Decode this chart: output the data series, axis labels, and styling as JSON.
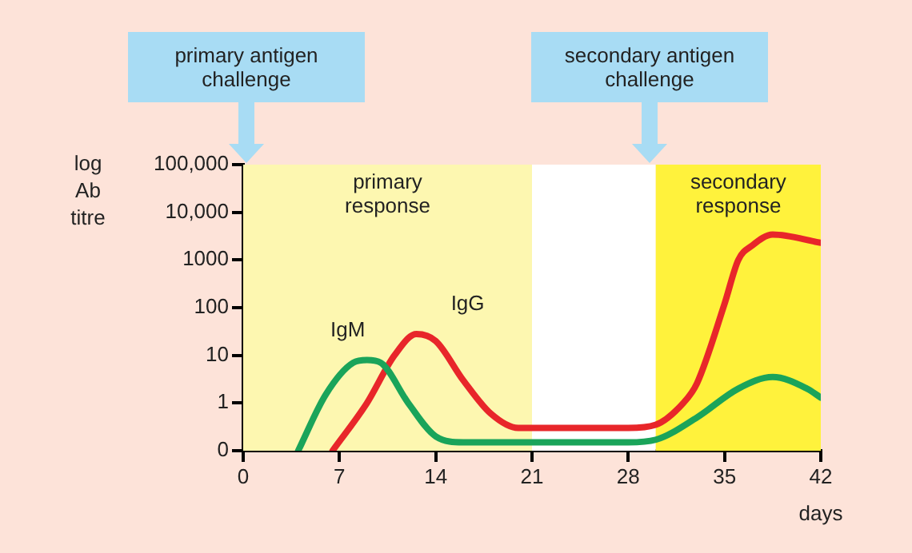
{
  "chart_data": {
    "type": "line",
    "xlabel": "days",
    "ylabel": "log Ab titre",
    "log": "y",
    "marker": "none",
    "line_style": "solid",
    "legend": false,
    "xlim": [
      0,
      42
    ],
    "xticks": [
      0,
      7,
      14,
      21,
      28,
      35,
      42
    ],
    "ylim": [
      0.1,
      100000
    ],
    "yticks": [
      {
        "value": 0.1,
        "label": "0"
      },
      1,
      10,
      100,
      1000,
      {
        "value": 10000,
        "label": "10,000"
      },
      {
        "value": 100000,
        "label": "100,000"
      }
    ],
    "series": [
      {
        "name": "IgM",
        "color": "#1aa45a",
        "x": [
          4,
          6,
          8,
          9,
          10,
          12,
          14,
          16,
          21,
          28,
          30,
          33,
          36,
          38.5,
          41,
          42
        ],
        "values": [
          0.1,
          1.5,
          7,
          8,
          7,
          1,
          0.2,
          0.15,
          0.15,
          0.15,
          0.17,
          0.5,
          2,
          3.5,
          2,
          1.3
        ]
      },
      {
        "name": "IgG",
        "color": "#e8262a",
        "x": [
          6.5,
          9,
          11,
          12.6,
          14,
          16,
          18,
          20,
          24,
          28,
          30,
          32,
          33,
          35,
          36,
          37,
          38.5,
          42
        ],
        "values": [
          0.1,
          1,
          10,
          28,
          20,
          3,
          0.6,
          0.3,
          0.3,
          0.3,
          0.35,
          1,
          2.6,
          120,
          1000,
          2000,
          3400,
          2300
        ]
      }
    ],
    "bands": [
      {
        "axis": "x",
        "from": 0,
        "to": 21,
        "label": "primary response",
        "color": "#fdf7b0"
      },
      {
        "axis": "x",
        "from": 21,
        "to": 30,
        "color": "#ffffff"
      },
      {
        "axis": "x",
        "from": 30,
        "to": 42,
        "label": "secondary response",
        "color": "#fff23c"
      }
    ],
    "annotations": [
      "primary antigen challenge",
      "secondary antigen challenge"
    ]
  }
}
